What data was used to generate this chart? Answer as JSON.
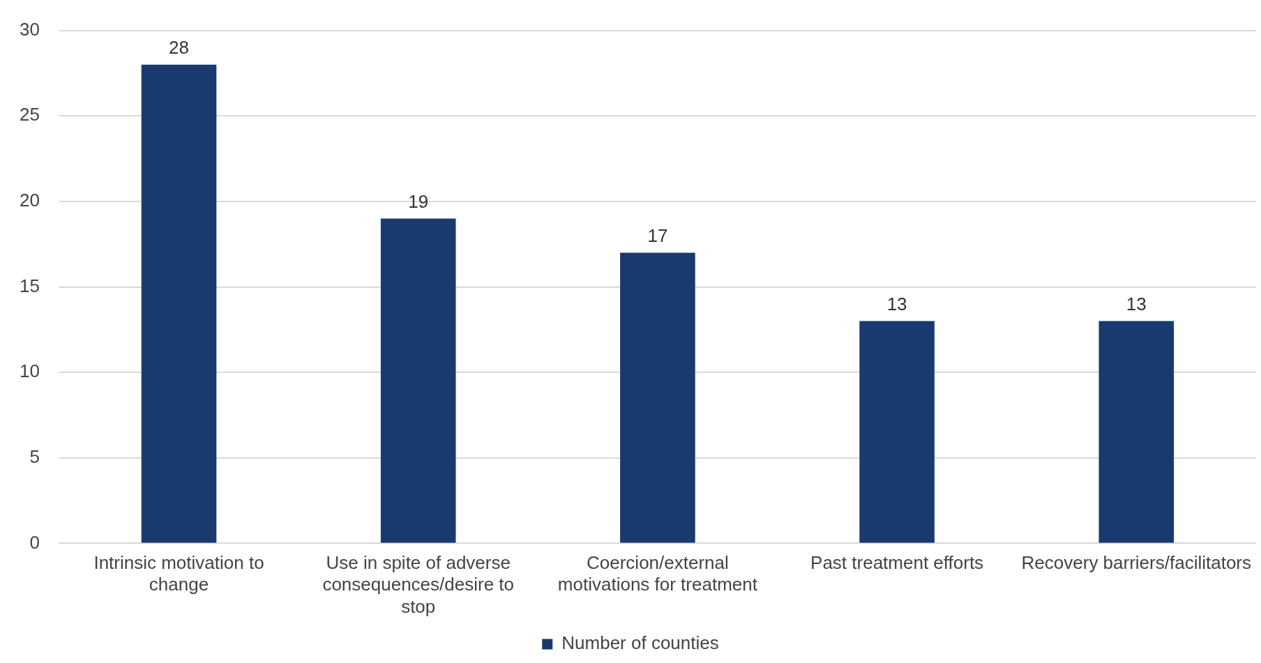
{
  "chart_data": {
    "type": "bar",
    "categories": [
      "Intrinsic motivation to change",
      "Use in spite of adverse consequences/desire to stop",
      "Coercion/external motivations for treatment",
      "Past treatment efforts",
      "Recovery barriers/facilitators"
    ],
    "series": [
      {
        "name": "Number of counties",
        "color": "#193a6e",
        "values": [
          28,
          19,
          17,
          13,
          13
        ]
      }
    ],
    "ylim": [
      0,
      30
    ],
    "yticks": [
      0,
      5,
      10,
      15,
      20,
      25,
      30
    ],
    "grid": "y",
    "legend": "bottom",
    "data_labels": true
  }
}
